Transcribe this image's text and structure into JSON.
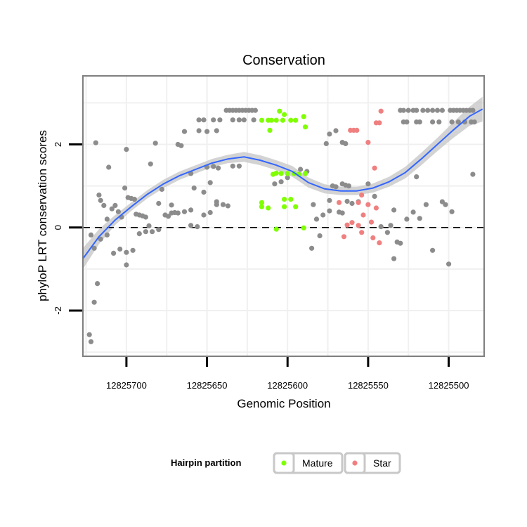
{
  "chart_data": {
    "type": "scatter",
    "title": "Conservation",
    "xlabel": "Genomic Position",
    "ylabel": "phyloP LRT conservation scores",
    "x_reversed": true,
    "xlim": [
      12825727,
      12825478
    ],
    "ylim": [
      -3.1,
      3.65
    ],
    "x_ticks": [
      12825700,
      12825650,
      12825600,
      12825550,
      12825500
    ],
    "x_tick_labels": [
      "12825700",
      "12825650",
      "12825600",
      "12825550",
      "12825500"
    ],
    "y_ticks": [
      -2,
      0,
      2
    ],
    "y_tick_labels": [
      "-2",
      "0",
      "2"
    ],
    "grid": true,
    "reference_line": {
      "y": 0,
      "style": "dashed"
    },
    "legend": {
      "title": "Hairpin partition",
      "position": "bottom",
      "entries": [
        {
          "name": "Mature",
          "color": "#7FFF00"
        },
        {
          "name": "Star",
          "color": "#F08080"
        }
      ]
    },
    "colors": {
      "other": "#8c8c8c",
      "mature": "#7FFF00",
      "star": "#F08080",
      "smooth": "#3366FF",
      "ribbon": "#c8c8c8",
      "panel_border": "#7f7f7f",
      "grid": "#f0f0f0"
    },
    "series": [
      {
        "name": "Mature",
        "points": [
          [
            12825616,
            2.58
          ],
          [
            12825612,
            2.58
          ],
          [
            12825610,
            2.58
          ],
          [
            12825607,
            2.58
          ],
          [
            12825603,
            2.58
          ],
          [
            12825598,
            2.58
          ],
          [
            12825595,
            2.58
          ],
          [
            12825605,
            2.8
          ],
          [
            12825602,
            2.72
          ],
          [
            12825590,
            2.67
          ],
          [
            12825611,
            2.34
          ],
          [
            12825589,
            2.42
          ],
          [
            12825609,
            1.28
          ],
          [
            12825607,
            1.31
          ],
          [
            12825604,
            1.3
          ],
          [
            12825600,
            1.3
          ],
          [
            12825596,
            1.3
          ],
          [
            12825593,
            1.28
          ],
          [
            12825589,
            1.3
          ],
          [
            12825602,
            0.68
          ],
          [
            12825598,
            0.68
          ],
          [
            12825612,
            0.47
          ],
          [
            12825602,
            0.5
          ],
          [
            12825595,
            0.5
          ],
          [
            12825616,
            0.6
          ],
          [
            12825616,
            0.5
          ],
          [
            12825607,
            -0.04
          ],
          [
            12825590,
            -0.01
          ]
        ]
      },
      {
        "name": "Star",
        "points": [
          [
            12825561,
            2.34
          ],
          [
            12825559,
            2.34
          ],
          [
            12825557,
            2.34
          ],
          [
            12825545,
            2.52
          ],
          [
            12825543,
            2.52
          ],
          [
            12825542,
            2.8
          ],
          [
            12825550,
            2.05
          ],
          [
            12825546,
            1.43
          ],
          [
            12825554,
            0.78
          ],
          [
            12825568,
            0.6
          ],
          [
            12825556,
            0.6
          ],
          [
            12825550,
            0.55
          ],
          [
            12825545,
            0.47
          ],
          [
            12825553,
            0.3
          ],
          [
            12825560,
            0.12
          ],
          [
            12825548,
            0.13
          ],
          [
            12825556,
            0.05
          ],
          [
            12825563,
            0.06
          ],
          [
            12825565,
            -0.22
          ],
          [
            12825554,
            -0.12
          ],
          [
            12825547,
            -0.25
          ],
          [
            12825543,
            -0.37
          ]
        ]
      },
      {
        "name": "",
        "points": [
          [
            12825723,
            -2.58
          ],
          [
            12825722,
            -2.75
          ],
          [
            12825720,
            -1.8
          ],
          [
            12825718,
            -1.35
          ],
          [
            12825719,
            2.04
          ],
          [
            12825717,
            0.78
          ],
          [
            12825716,
            0.65
          ],
          [
            12825714,
            0.53
          ],
          [
            12825712,
            0.2
          ],
          [
            12825711,
            1.45
          ],
          [
            12825709,
            0.45
          ],
          [
            12825707,
            0.53
          ],
          [
            12825705,
            0.38
          ],
          [
            12825703,
            0.25
          ],
          [
            12825701,
            0.95
          ],
          [
            12825700,
            1.88
          ],
          [
            12825699,
            0.72
          ],
          [
            12825697,
            0.7
          ],
          [
            12825695,
            0.68
          ],
          [
            12825694,
            0.32
          ],
          [
            12825692,
            0.3
          ],
          [
            12825690,
            0.28
          ],
          [
            12825688,
            0.25
          ],
          [
            12825686,
            0.04
          ],
          [
            12825685,
            1.53
          ],
          [
            12825682,
            2.03
          ],
          [
            12825680,
            0.58
          ],
          [
            12825678,
            0.92
          ],
          [
            12825676,
            0.3
          ],
          [
            12825674,
            0.27
          ],
          [
            12825672,
            0.54
          ],
          [
            12825670,
            0.36
          ],
          [
            12825668,
            2.0
          ],
          [
            12825666,
            1.97
          ],
          [
            12825664,
            2.31
          ],
          [
            12825660,
            1.3
          ],
          [
            12825660,
            0.42
          ],
          [
            12825655,
            2.59
          ],
          [
            12825655,
            2.33
          ],
          [
            12825652,
            2.59
          ],
          [
            12825650,
            2.31
          ],
          [
            12825646,
            2.59
          ],
          [
            12825644,
            2.33
          ],
          [
            12825642,
            2.59
          ],
          [
            12825638,
            2.82
          ],
          [
            12825636,
            2.82
          ],
          [
            12825634,
            2.82
          ],
          [
            12825632,
            2.82
          ],
          [
            12825630,
            2.82
          ],
          [
            12825628,
            2.82
          ],
          [
            12825626,
            2.82
          ],
          [
            12825624,
            2.82
          ],
          [
            12825622,
            2.82
          ],
          [
            12825620,
            2.82
          ],
          [
            12825634,
            2.59
          ],
          [
            12825630,
            2.59
          ],
          [
            12825627,
            2.59
          ],
          [
            12825621,
            2.59
          ],
          [
            12825650,
            1.45
          ],
          [
            12825646,
            1.47
          ],
          [
            12825643,
            1.43
          ],
          [
            12825640,
            0.55
          ],
          [
            12825637,
            0.52
          ],
          [
            12825634,
            1.48
          ],
          [
            12825630,
            1.48
          ],
          [
            12825658,
            0.95
          ],
          [
            12825652,
            0.85
          ],
          [
            12825648,
            1.08
          ],
          [
            12825644,
            0.55
          ],
          [
            12825672,
            0.35
          ],
          [
            12825668,
            0.35
          ],
          [
            12825664,
            0.38
          ],
          [
            12825660,
            0.05
          ],
          [
            12825656,
            0.02
          ],
          [
            12825652,
            0.3
          ],
          [
            12825648,
            0.36
          ],
          [
            12825644,
            0.62
          ],
          [
            12825680,
            -0.05
          ],
          [
            12825684,
            -0.1
          ],
          [
            12825688,
            -0.1
          ],
          [
            12825692,
            -0.15
          ],
          [
            12825696,
            -0.55
          ],
          [
            12825700,
            -0.6
          ],
          [
            12825704,
            -0.52
          ],
          [
            12825708,
            -0.62
          ],
          [
            12825712,
            -0.18
          ],
          [
            12825716,
            -0.28
          ],
          [
            12825720,
            -0.5
          ],
          [
            12825722,
            -0.18
          ],
          [
            12825700,
            -0.9
          ],
          [
            12825592,
            1.4
          ],
          [
            12825588,
            1.35
          ],
          [
            12825584,
            0.55
          ],
          [
            12825582,
            0.2
          ],
          [
            12825578,
            0.3
          ],
          [
            12825574,
            0.4
          ],
          [
            12825572,
            1.0
          ],
          [
            12825570,
            0.98
          ],
          [
            12825566,
            1.05
          ],
          [
            12825564,
            1.02
          ],
          [
            12825562,
            1.0
          ],
          [
            12825580,
            -0.2
          ],
          [
            12825585,
            -0.5
          ],
          [
            12825574,
            0.65
          ],
          [
            12825576,
            2.02
          ],
          [
            12825574,
            2.25
          ],
          [
            12825570,
            2.33
          ],
          [
            12825566,
            2.05
          ],
          [
            12825564,
            2.02
          ],
          [
            12825568,
            0.37
          ],
          [
            12825566,
            0.35
          ],
          [
            12825563,
            0.63
          ],
          [
            12825560,
            0.58
          ],
          [
            12825556,
            0.62
          ],
          [
            12825550,
            1.05
          ],
          [
            12825546,
            0.75
          ],
          [
            12825542,
            0.02
          ],
          [
            12825538,
            -0.12
          ],
          [
            12825536,
            0.05
          ],
          [
            12825534,
            0.42
          ],
          [
            12825532,
            -0.35
          ],
          [
            12825530,
            -0.38
          ],
          [
            12825534,
            -0.75
          ],
          [
            12825526,
            0.2
          ],
          [
            12825522,
            0.37
          ],
          [
            12825518,
            0.22
          ],
          [
            12825514,
            0.55
          ],
          [
            12825510,
            -0.55
          ],
          [
            12825504,
            0.62
          ],
          [
            12825502,
            0.55
          ],
          [
            12825500,
            -0.88
          ],
          [
            12825498,
            0.38
          ],
          [
            12825530,
            2.82
          ],
          [
            12825528,
            2.82
          ],
          [
            12825525,
            2.82
          ],
          [
            12825522,
            2.82
          ],
          [
            12825520,
            2.82
          ],
          [
            12825516,
            2.82
          ],
          [
            12825513,
            2.82
          ],
          [
            12825510,
            2.82
          ],
          [
            12825507,
            2.82
          ],
          [
            12825504,
            2.82
          ],
          [
            12825499,
            2.82
          ],
          [
            12825497,
            2.82
          ],
          [
            12825495,
            2.82
          ],
          [
            12825493,
            2.82
          ],
          [
            12825491,
            2.82
          ],
          [
            12825489,
            2.82
          ],
          [
            12825487,
            2.82
          ],
          [
            12825485,
            2.82
          ],
          [
            12825528,
            2.54
          ],
          [
            12825526,
            2.54
          ],
          [
            12825520,
            2.54
          ],
          [
            12825518,
            2.54
          ],
          [
            12825510,
            2.54
          ],
          [
            12825506,
            2.54
          ],
          [
            12825498,
            2.54
          ],
          [
            12825494,
            2.54
          ],
          [
            12825490,
            2.54
          ],
          [
            12825486,
            2.54
          ],
          [
            12825484,
            2.54
          ],
          [
            12825520,
            1.22
          ],
          [
            12825485,
            1.28
          ],
          [
            12825600,
            1.2
          ],
          [
            12825604,
            1.1
          ],
          [
            12825608,
            1.05
          ]
        ]
      }
    ],
    "smooth": {
      "x": [
        12825727,
        12825717,
        12825707,
        12825697,
        12825687,
        12825677,
        12825667,
        12825657,
        12825647,
        12825637,
        12825627,
        12825617,
        12825607,
        12825597,
        12825587,
        12825577,
        12825567,
        12825557,
        12825547,
        12825537,
        12825527,
        12825517,
        12825507,
        12825497,
        12825487,
        12825479
      ],
      "y": [
        -0.75,
        -0.22,
        0.18,
        0.5,
        0.8,
        1.05,
        1.25,
        1.4,
        1.55,
        1.65,
        1.7,
        1.62,
        1.5,
        1.35,
        1.08,
        0.93,
        0.88,
        0.88,
        0.95,
        1.1,
        1.32,
        1.65,
        2.0,
        2.35,
        2.68,
        2.85
      ],
      "lower": [
        -1.0,
        -0.4,
        0.06,
        0.4,
        0.7,
        0.95,
        1.15,
        1.3,
        1.45,
        1.55,
        1.58,
        1.5,
        1.38,
        1.22,
        0.96,
        0.82,
        0.78,
        0.78,
        0.84,
        0.98,
        1.18,
        1.5,
        1.84,
        2.16,
        2.45,
        2.55
      ],
      "upper": [
        -0.5,
        -0.04,
        0.3,
        0.6,
        0.9,
        1.15,
        1.35,
        1.5,
        1.65,
        1.75,
        1.82,
        1.74,
        1.62,
        1.48,
        1.2,
        1.04,
        0.98,
        0.98,
        1.06,
        1.22,
        1.46,
        1.8,
        2.16,
        2.54,
        2.91,
        3.15
      ]
    }
  }
}
